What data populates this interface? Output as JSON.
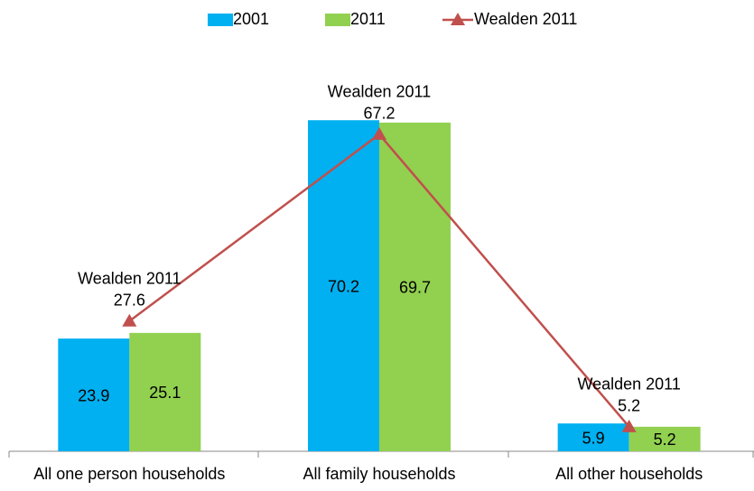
{
  "chart_data": {
    "type": "bar",
    "categories": [
      "All one person households",
      "All family households",
      "All other households"
    ],
    "series": [
      {
        "name": "2001",
        "color": "#00b0f0",
        "values": [
          23.9,
          70.2,
          5.9
        ]
      },
      {
        "name": "2011",
        "color": "#92d050",
        "values": [
          25.1,
          69.7,
          5.2
        ]
      },
      {
        "name": "Wealden 2011",
        "color": "#c0504d",
        "type": "line",
        "values": [
          27.6,
          67.2,
          5.2
        ]
      }
    ],
    "ylim": [
      0,
      80
    ],
    "legend": "top"
  }
}
